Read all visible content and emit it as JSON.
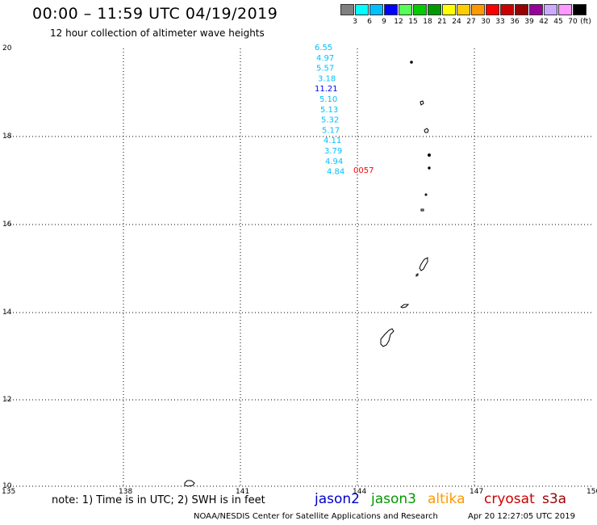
{
  "header": {
    "title": "00:00 – 11:59 UTC 04/19/2019",
    "subtitle": "12 hour collection of altimeter wave heights"
  },
  "legend": {
    "colors": [
      "#808080",
      "#00ffff",
      "#00bfff",
      "#0000ff",
      "#55ff55",
      "#00cc00",
      "#009900",
      "#ffff00",
      "#ffcc00",
      "#ff9900",
      "#ff0000",
      "#cc0000",
      "#990000",
      "#990099",
      "#ccaaff",
      "#ff99ff",
      "#000000"
    ],
    "ticks": [
      "3",
      "6",
      "9",
      "12",
      "15",
      "18",
      "21",
      "24",
      "27",
      "30",
      "33",
      "36",
      "39",
      "42",
      "45",
      "70"
    ],
    "unit": "(ft)"
  },
  "axes": {
    "lat_labels": [
      "20",
      "18",
      "16",
      "14",
      "12",
      "10"
    ],
    "lon_labels": [
      "135",
      "138",
      "141",
      "144",
      "147",
      "150"
    ]
  },
  "measurements": [
    {
      "value": "6.55",
      "color": "#00bfff"
    },
    {
      "value": "4.97",
      "color": "#00bfff"
    },
    {
      "value": "5.57",
      "color": "#00bfff"
    },
    {
      "value": "3.18",
      "color": "#00bfff"
    },
    {
      "value": "11.21",
      "color": "#0000ff"
    },
    {
      "value": "5.10",
      "color": "#00bfff"
    },
    {
      "value": "5.13",
      "color": "#00bfff"
    },
    {
      "value": "5.32",
      "color": "#00bfff"
    },
    {
      "value": "5.17",
      "color": "#00bfff"
    },
    {
      "value": "4.11",
      "color": "#00bfff"
    },
    {
      "value": "3.79",
      "color": "#00bfff"
    },
    {
      "value": "4.94",
      "color": "#00bfff"
    },
    {
      "value": "4.84",
      "color": "#00bfff"
    }
  ],
  "pass_time": {
    "value": "0057",
    "color": "#ff0000"
  },
  "footer": {
    "note": "note: 1) Time is in UTC; 2) SWH is in feet",
    "satellites": [
      {
        "name": "jason2",
        "color": "#0000cc"
      },
      {
        "name": "jason3",
        "color": "#009900"
      },
      {
        "name": "altika",
        "color": "#ff9900"
      },
      {
        "name": "cryosat",
        "color": "#cc0000"
      },
      {
        "name": "s3a",
        "color": "#990000"
      }
    ],
    "credit": "NOAA/NESDIS Center for Satellite Applications and Research",
    "timestamp": "Apr 20 12:27:05 UTC 2019"
  }
}
